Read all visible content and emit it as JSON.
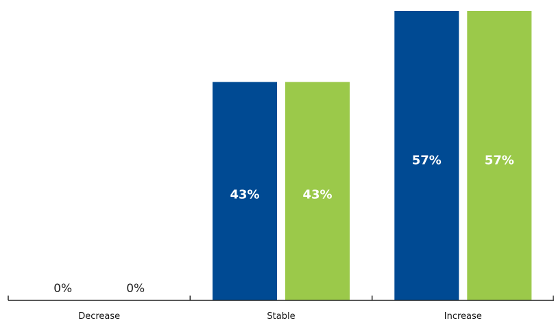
{
  "chart_data": {
    "type": "bar",
    "categories": [
      "Decrease",
      "Stable",
      "Increase"
    ],
    "series": [
      {
        "values": [
          0,
          43,
          57
        ],
        "color": "#004a93"
      },
      {
        "values": [
          0,
          43,
          57
        ],
        "color": "#9bc94a"
      }
    ],
    "data_labels": [
      [
        "0%",
        "43%",
        "57%"
      ],
      [
        "0%",
        "43%",
        "57%"
      ]
    ],
    "ylim": [
      0,
      57
    ],
    "grid": false,
    "legend": false,
    "axis_color": "#222222"
  }
}
